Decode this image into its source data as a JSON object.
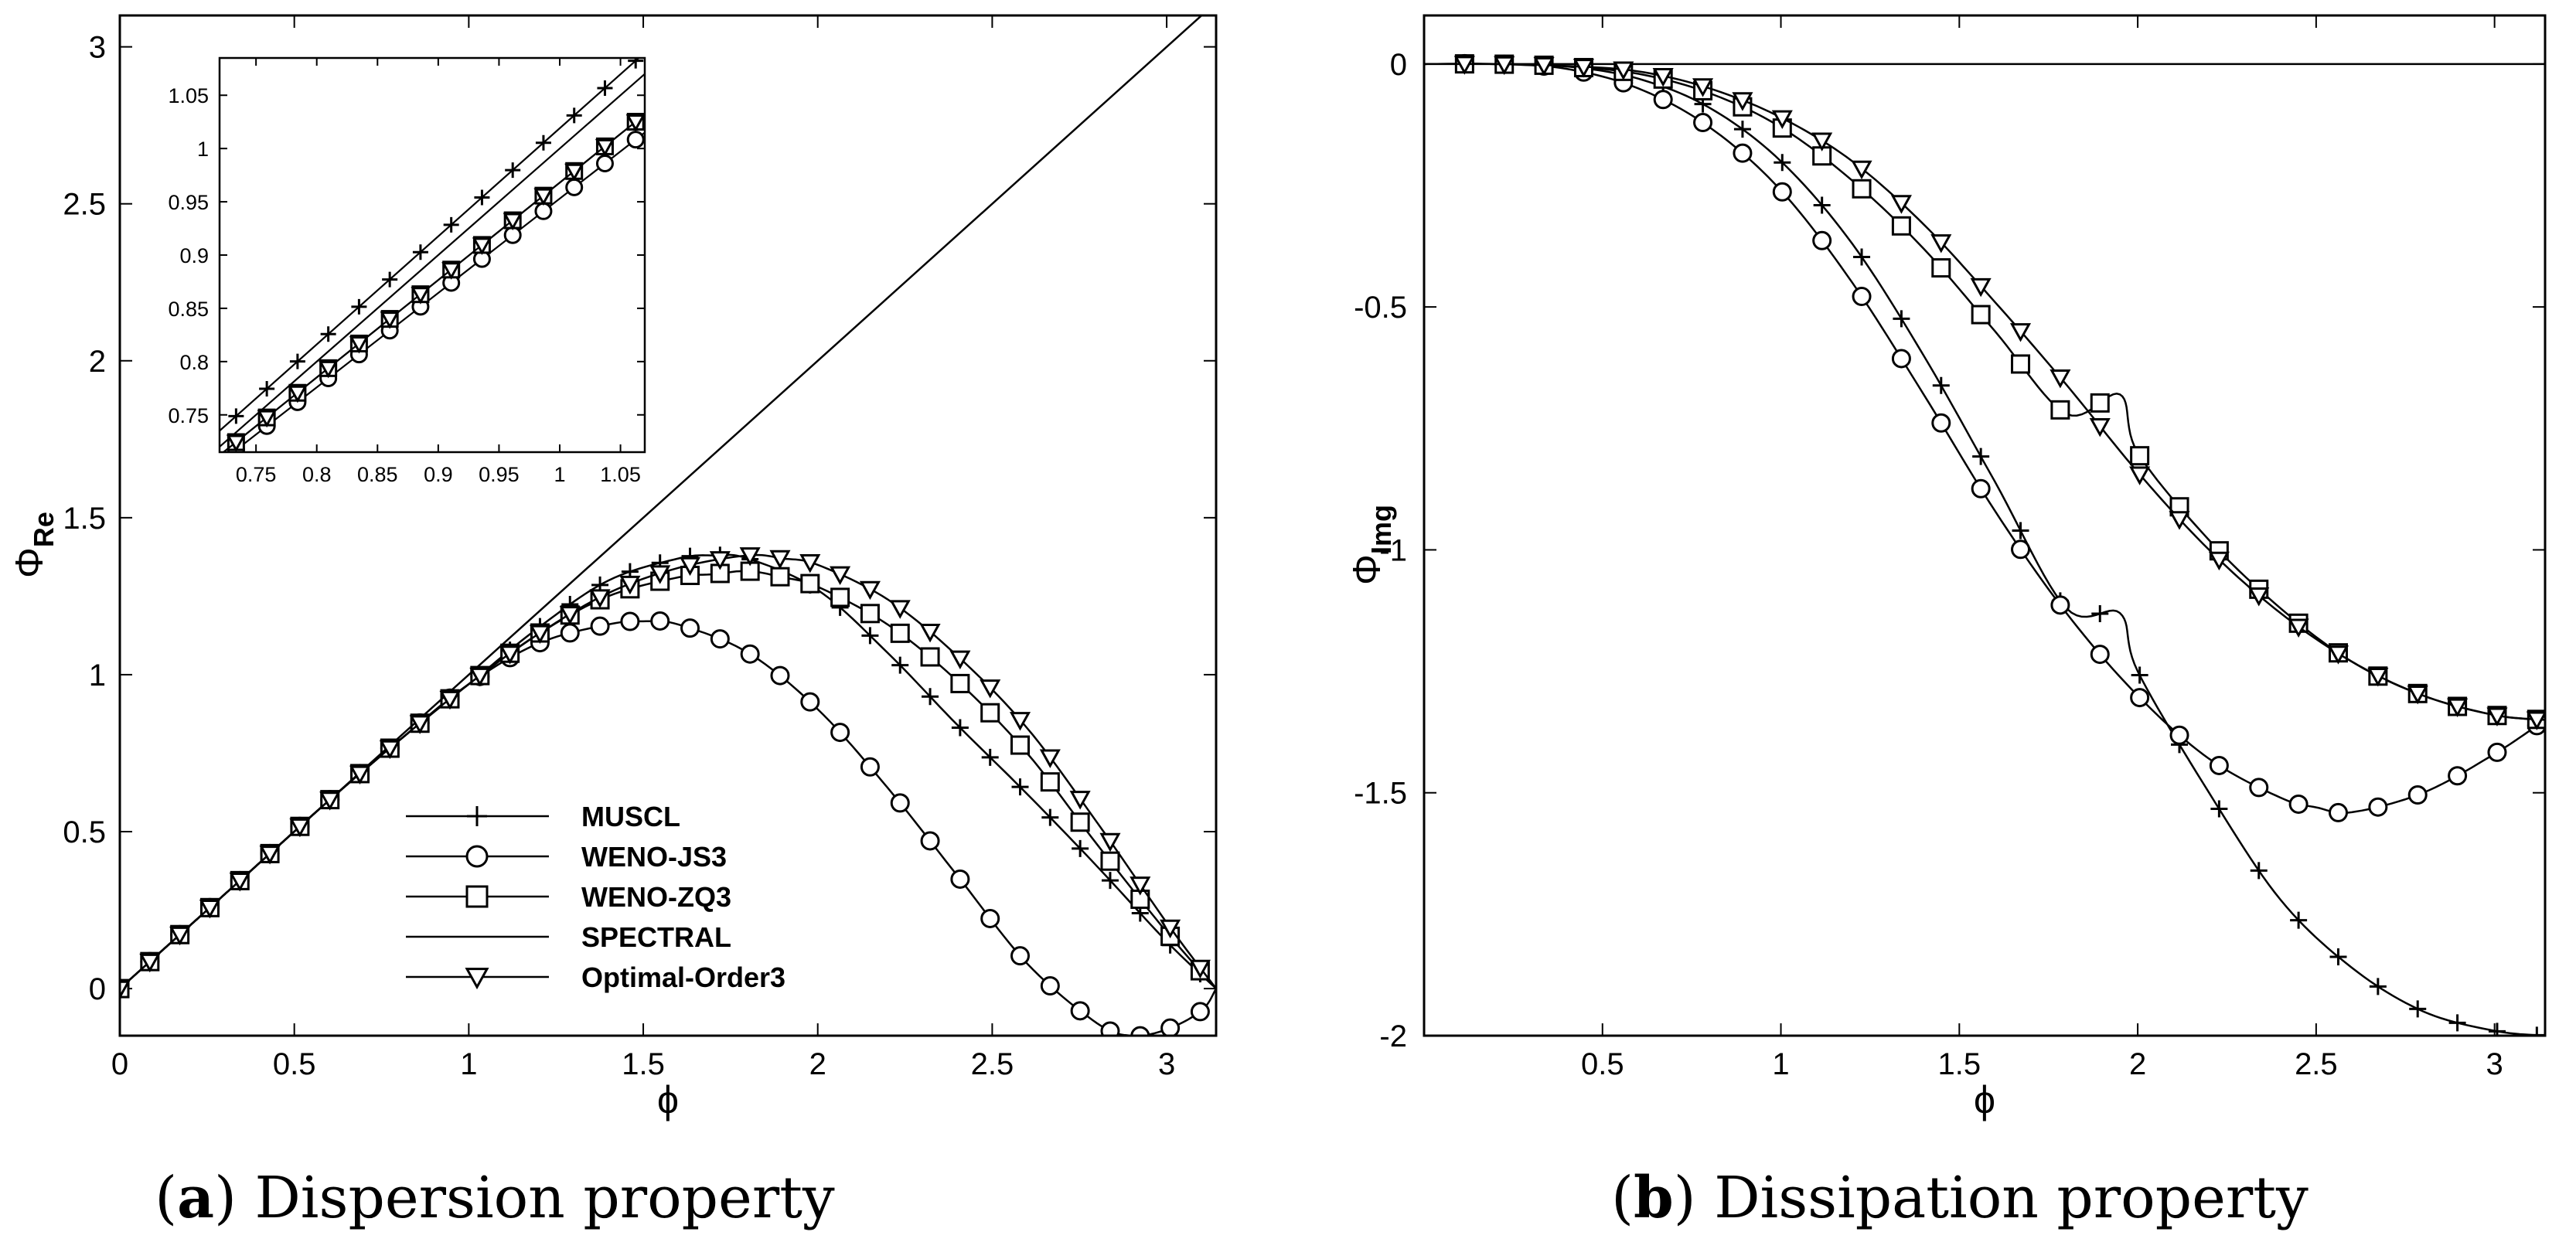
{
  "chart_data": [
    {
      "type": "line",
      "panel_label": "(a)",
      "caption_bold": "a",
      "caption_text": " Dispersion property",
      "xlabel": "ϕ",
      "ylabel_main": "Φ",
      "ylabel_sub": "Re",
      "xlim": [
        0,
        3.1416
      ],
      "ylim": [
        -0.15,
        3.1
      ],
      "x_ticks": [
        0,
        0.5,
        1,
        1.5,
        2,
        2.5,
        3
      ],
      "x_tick_labels": [
        "0",
        "0.5",
        "1",
        "1.5",
        "2",
        "2.5",
        "3"
      ],
      "y_ticks": [
        0,
        0.5,
        1,
        1.5,
        2,
        2.5,
        3
      ],
      "y_tick_labels": [
        "0",
        "0.5",
        "1",
        "1.5",
        "2",
        "2.5",
        "3"
      ],
      "legend_position": "bottom-center",
      "legend": [
        {
          "name": "MUSCL",
          "marker": "plus"
        },
        {
          "name": "WENO-JS3",
          "marker": "circle"
        },
        {
          "name": "WENO-ZQ3",
          "marker": "square"
        },
        {
          "name": "SPECTRAL",
          "marker": "none"
        },
        {
          "name": "Optimal-Order3",
          "marker": "triangle-down"
        }
      ],
      "series": [
        {
          "name": "MUSCL",
          "marker": "plus",
          "x": [
            0,
            0.2,
            0.4,
            0.6,
            0.8,
            1.0,
            1.2,
            1.4,
            1.6,
            1.7,
            1.8,
            2.0,
            2.2,
            2.4,
            2.6,
            2.8,
            3.0,
            3.1416
          ],
          "y": [
            0,
            0.2,
            0.4,
            0.6,
            0.79,
            0.97,
            1.15,
            1.3,
            1.37,
            1.38,
            1.37,
            1.27,
            1.07,
            0.84,
            0.62,
            0.39,
            0.15,
            0
          ]
        },
        {
          "name": "WENO-JS3",
          "marker": "circle",
          "x": [
            0,
            0.2,
            0.4,
            0.6,
            0.8,
            1.0,
            1.2,
            1.4,
            1.5,
            1.6,
            1.8,
            2.0,
            2.2,
            2.4,
            2.6,
            2.8,
            2.9,
            3.0,
            3.1,
            3.1416
          ],
          "y": [
            0,
            0.2,
            0.4,
            0.6,
            0.79,
            0.97,
            1.1,
            1.16,
            1.17,
            1.16,
            1.07,
            0.89,
            0.64,
            0.36,
            0.08,
            -0.11,
            -0.15,
            -0.13,
            -0.07,
            0
          ]
        },
        {
          "name": "WENO-ZQ3",
          "marker": "square",
          "x": [
            0,
            0.2,
            0.4,
            0.6,
            0.8,
            1.0,
            1.2,
            1.4,
            1.6,
            1.7,
            1.8,
            1.9,
            2.0,
            2.2,
            2.4,
            2.6,
            2.8,
            3.0,
            3.1416
          ],
          "y": [
            0,
            0.2,
            0.4,
            0.6,
            0.79,
            0.97,
            1.13,
            1.25,
            1.31,
            1.32,
            1.33,
            1.31,
            1.28,
            1.16,
            0.98,
            0.75,
            0.46,
            0.18,
            0
          ]
        },
        {
          "name": "SPECTRAL",
          "marker": "none",
          "x": [
            0,
            3.1416
          ],
          "y": [
            0,
            3.1416
          ]
        },
        {
          "name": "Optimal-Order3",
          "marker": "triangle-down",
          "x": [
            0,
            0.2,
            0.4,
            0.6,
            0.8,
            1.0,
            1.2,
            1.4,
            1.6,
            1.8,
            1.9,
            2.0,
            2.2,
            2.4,
            2.6,
            2.8,
            3.0,
            3.1416
          ],
          "y": [
            0,
            0.2,
            0.4,
            0.6,
            0.79,
            0.97,
            1.13,
            1.26,
            1.34,
            1.38,
            1.37,
            1.35,
            1.24,
            1.06,
            0.83,
            0.53,
            0.21,
            0
          ]
        }
      ],
      "inset": {
        "xlim": [
          0.72,
          1.07
        ],
        "ylim": [
          0.715,
          1.085
        ],
        "x_ticks": [
          0.75,
          0.8,
          0.85,
          0.9,
          0.95,
          1,
          1.05
        ],
        "x_tick_labels": [
          "0.75",
          "0.8",
          "0.85",
          "0.9",
          "0.95",
          "1",
          "1.05"
        ],
        "y_ticks": [
          0.75,
          0.8,
          0.85,
          0.9,
          0.95,
          1,
          1.05
        ],
        "y_tick_labels": [
          "0.75",
          "0.8",
          "0.85",
          "0.9",
          "0.95",
          "1",
          "1.05"
        ],
        "series": [
          {
            "name": "MUSCL",
            "marker": "plus",
            "x": [
              0.72,
              1.07
            ],
            "y": [
              0.735,
              1.09
            ]
          },
          {
            "name": "WENO-JS3",
            "marker": "circle",
            "x": [
              0.72,
              1.07
            ],
            "y": [
              0.705,
              1.015
            ]
          },
          {
            "name": "WENO-ZQ3",
            "marker": "square",
            "x": [
              0.72,
              1.07
            ],
            "y": [
              0.712,
              1.032
            ]
          },
          {
            "name": "SPECTRAL",
            "marker": "none",
            "x": [
              0.72,
              1.07
            ],
            "y": [
              0.72,
              1.07
            ]
          },
          {
            "name": "Optimal-Order3",
            "marker": "triangle-down",
            "x": [
              0.72,
              1.07
            ],
            "y": [
              0.712,
              1.032
            ]
          }
        ]
      }
    },
    {
      "type": "line",
      "panel_label": "(b)",
      "caption_bold": "b",
      "caption_text": " Dissipation property",
      "xlabel": "ϕ",
      "ylabel_main": "Φ",
      "ylabel_sub": "Img",
      "xlim": [
        0,
        3.1416
      ],
      "ylim": [
        -2,
        0.1
      ],
      "x_ticks": [
        0.5,
        1,
        1.5,
        2,
        2.5,
        3
      ],
      "x_tick_labels": [
        "0.5",
        "1",
        "1.5",
        "2",
        "2.5",
        "3"
      ],
      "y_ticks": [
        -2,
        -1.5,
        -1,
        -0.5,
        0
      ],
      "y_tick_labels": [
        "-2",
        "-1.5",
        "-1",
        "-0.5",
        "0"
      ],
      "series": [
        {
          "name": "MUSCL",
          "marker": "plus",
          "x": [
            0,
            0.2,
            0.4,
            0.6,
            0.8,
            1.0,
            1.2,
            1.4,
            1.6,
            1.8,
            1.95,
            2.0,
            2.2,
            2.4,
            2.6,
            2.8,
            3.0,
            3.1416
          ],
          "y": [
            0,
            0,
            -0.005,
            -0.03,
            -0.09,
            -0.2,
            -0.37,
            -0.6,
            -0.86,
            -1.12,
            -1.13,
            -1.25,
            -1.5,
            -1.72,
            -1.86,
            -1.95,
            -1.99,
            -2.0
          ]
        },
        {
          "name": "WENO-JS3",
          "marker": "circle",
          "x": [
            0,
            0.2,
            0.4,
            0.6,
            0.8,
            1.0,
            1.2,
            1.4,
            1.6,
            1.8,
            2.0,
            2.2,
            2.4,
            2.5,
            2.6,
            2.8,
            3.0,
            3.1416
          ],
          "y": [
            0,
            0,
            -0.01,
            -0.05,
            -0.13,
            -0.26,
            -0.45,
            -0.68,
            -0.92,
            -1.13,
            -1.3,
            -1.43,
            -1.51,
            -1.53,
            -1.54,
            -1.5,
            -1.42,
            -1.35
          ]
        },
        {
          "name": "WENO-ZQ3",
          "marker": "square",
          "x": [
            0,
            0.2,
            0.4,
            0.6,
            0.8,
            1.0,
            1.2,
            1.4,
            1.6,
            1.8,
            1.95,
            2.0,
            2.2,
            2.4,
            2.6,
            2.8,
            3.0,
            3.1416
          ],
          "y": [
            0,
            0,
            -0.005,
            -0.02,
            -0.06,
            -0.13,
            -0.24,
            -0.38,
            -0.55,
            -0.72,
            -0.68,
            -0.8,
            -0.98,
            -1.12,
            -1.23,
            -1.3,
            -1.34,
            -1.35
          ]
        },
        {
          "name": "SPECTRAL",
          "marker": "none",
          "x": [
            0,
            3.1416
          ],
          "y": [
            0,
            0
          ]
        },
        {
          "name": "Optimal-Order3",
          "marker": "triangle-down",
          "x": [
            0,
            0.2,
            0.4,
            0.6,
            0.8,
            1.0,
            1.2,
            1.4,
            1.6,
            1.8,
            2.0,
            2.2,
            2.4,
            2.6,
            2.8,
            3.0,
            3.1416
          ],
          "y": [
            0,
            0,
            -0.004,
            -0.015,
            -0.05,
            -0.11,
            -0.2,
            -0.33,
            -0.49,
            -0.66,
            -0.84,
            -1.0,
            -1.13,
            -1.23,
            -1.3,
            -1.34,
            -1.35
          ]
        }
      ]
    }
  ]
}
